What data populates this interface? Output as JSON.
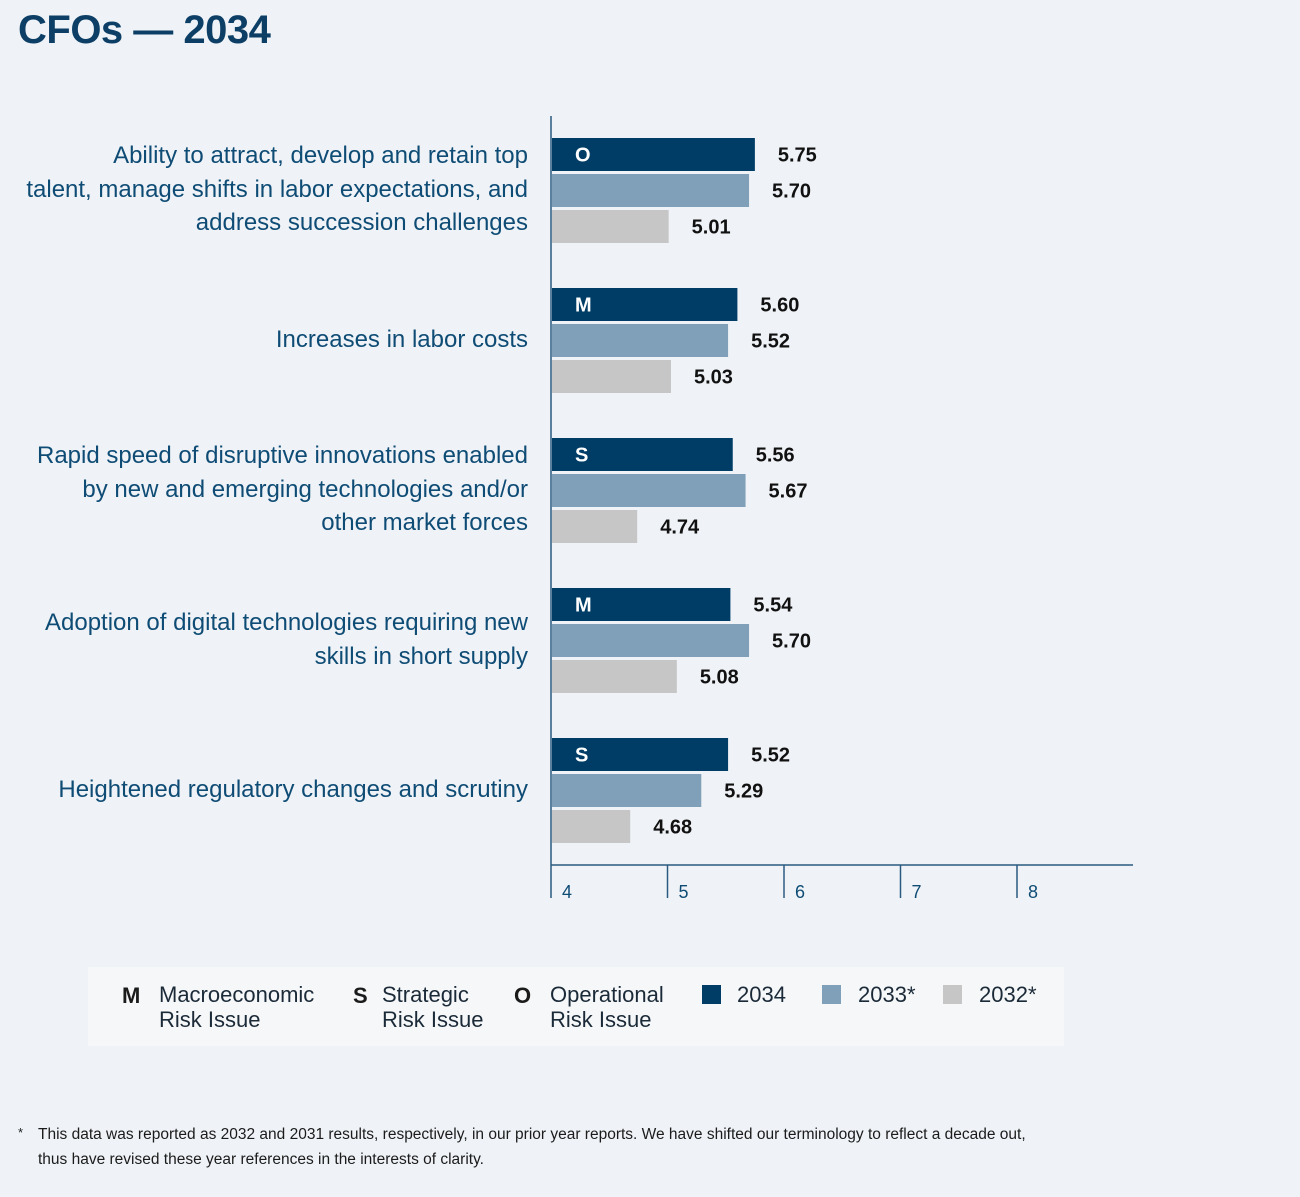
{
  "title": "CFOs — 2034",
  "chart_data": {
    "type": "bar",
    "orientation": "horizontal",
    "title": "CFOs — 2034",
    "categories": [
      "Ability to attract, develop and retain top talent, manage shifts in labor expectations, and address succession challenges",
      "Increases in labor costs",
      "Rapid speed of disruptive innovations enabled by new and emerging technologies and/or other market forces",
      "Adoption of digital technologies requiring new skills in short supply",
      "Heightened regulatory changes and scrutiny"
    ],
    "category_lines": [
      [
        "Ability to attract, develop and retain top",
        "talent, manage shifts in labor expectations, and",
        "address succession challenges"
      ],
      [
        "Increases in labor costs"
      ],
      [
        "Rapid speed of disruptive innovations enabled",
        "by new and emerging technologies and/or",
        "other market forces"
      ],
      [
        "Adoption of digital technologies requiring new",
        "skills in short supply"
      ],
      [
        "Heightened regulatory changes and scrutiny"
      ]
    ],
    "risk_codes": [
      "O",
      "M",
      "S",
      "M",
      "S"
    ],
    "series": [
      {
        "name": "2034",
        "values": [
          5.75,
          5.6,
          5.56,
          5.54,
          5.52
        ],
        "labels": [
          "5.75",
          "5.60",
          "5.56",
          "5.54",
          "5.52"
        ]
      },
      {
        "name": "2033*",
        "values": [
          5.7,
          5.52,
          5.67,
          5.7,
          5.29
        ],
        "labels": [
          "5.70",
          "5.52",
          "5.67",
          "5.70",
          "5.29"
        ]
      },
      {
        "name": "2032*",
        "values": [
          5.01,
          5.03,
          4.74,
          5.08,
          4.68
        ],
        "labels": [
          "5.01",
          "5.03",
          "4.74",
          "5.08",
          "4.68"
        ]
      }
    ],
    "xlim": [
      4,
      9
    ],
    "xticks": [
      "4",
      "5",
      "6",
      "7",
      "8"
    ],
    "xlabel": "",
    "ylabel": ""
  },
  "legend": {
    "codes": [
      {
        "code": "M",
        "line1": "Macroeconomic",
        "line2": "Risk Issue"
      },
      {
        "code": "S",
        "line1": "Strategic",
        "line2": "Risk Issue"
      },
      {
        "code": "O",
        "line1": "Operational",
        "line2": "Risk Issue"
      }
    ],
    "series": [
      {
        "label": "2034",
        "color": "#003d66"
      },
      {
        "label": "2033*",
        "color": "#7fa0b8"
      },
      {
        "label": "2032*",
        "color": "#c6c6c6"
      }
    ]
  },
  "footnote": {
    "marker": "*",
    "line1": "This data was reported as 2032 and 2031 results, respectively, in our prior year reports. We have shifted our terminology to reflect a decade out,",
    "line2": "thus have revised these year references in the interests of clarity."
  }
}
